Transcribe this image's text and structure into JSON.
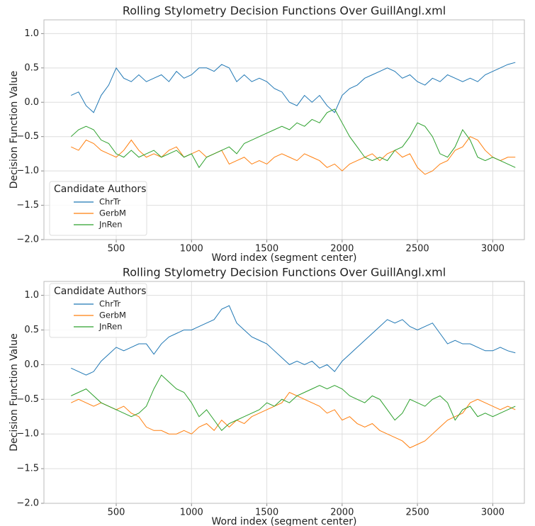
{
  "chart_data": [
    {
      "type": "line",
      "title": "Rolling Stylometry Decision Functions Over GuillAngl.xml",
      "x_label": "Word index (segment center)",
      "y_label": "Decision Function Value",
      "legend_title": "Candidate Authors",
      "legend": "lower left",
      "grid": true,
      "xlim": [
        20,
        3210
      ],
      "ylim": [
        -2,
        1.2
      ],
      "xticks": [
        500,
        1000,
        1500,
        2000,
        2500,
        3000
      ],
      "yticks": [
        {
          "value": -2,
          "label": "−2.0"
        },
        {
          "value": -1.5,
          "label": "−1.5"
        },
        {
          "value": -1,
          "label": "−1.0"
        },
        {
          "value": -0.5,
          "label": "−0.5"
        },
        {
          "value": 0,
          "label": "0.0"
        },
        {
          "value": 0.5,
          "label": "0.5"
        },
        {
          "value": 1,
          "label": "1.0"
        }
      ],
      "x": [
        200,
        250,
        300,
        350,
        400,
        450,
        500,
        550,
        600,
        650,
        700,
        750,
        800,
        850,
        900,
        950,
        1000,
        1050,
        1100,
        1150,
        1200,
        1250,
        1300,
        1350,
        1400,
        1450,
        1500,
        1550,
        1600,
        1650,
        1700,
        1750,
        1800,
        1850,
        1900,
        1950,
        2000,
        2050,
        2100,
        2150,
        2200,
        2250,
        2300,
        2350,
        2400,
        2450,
        2500,
        2550,
        2600,
        2650,
        2700,
        2750,
        2800,
        2850,
        2900,
        2950,
        3000,
        3050,
        3100,
        3150
      ],
      "series": [
        {
          "name": "ChrTr",
          "color": "#1f77b4",
          "values": [
            0.1,
            0.15,
            -0.05,
            -0.15,
            0.1,
            0.25,
            0.5,
            0.35,
            0.3,
            0.4,
            0.3,
            0.35,
            0.4,
            0.3,
            0.45,
            0.35,
            0.4,
            0.5,
            0.5,
            0.45,
            0.55,
            0.5,
            0.3,
            0.4,
            0.3,
            0.35,
            0.3,
            0.2,
            0.15,
            0,
            -0.05,
            0.1,
            0,
            0.1,
            -0.05,
            -0.15,
            0.1,
            0.2,
            0.25,
            0.35,
            0.4,
            0.45,
            0.5,
            0.45,
            0.35,
            0.4,
            0.3,
            0.25,
            0.35,
            0.3,
            0.4,
            0.35,
            0.3,
            0.35,
            0.3,
            0.4,
            0.45,
            0.5,
            0.55,
            0.58
          ]
        },
        {
          "name": "GerbM",
          "color": "#ff7f0e",
          "values": [
            -0.65,
            -0.7,
            -0.55,
            -0.6,
            -0.7,
            -0.75,
            -0.8,
            -0.7,
            -0.55,
            -0.7,
            -0.8,
            -0.75,
            -0.8,
            -0.7,
            -0.65,
            -0.8,
            -0.75,
            -0.7,
            -0.8,
            -0.75,
            -0.7,
            -0.9,
            -0.85,
            -0.8,
            -0.9,
            -0.85,
            -0.9,
            -0.8,
            -0.75,
            -0.8,
            -0.85,
            -0.75,
            -0.8,
            -0.85,
            -0.95,
            -0.9,
            -1,
            -0.9,
            -0.85,
            -0.8,
            -0.75,
            -0.85,
            -0.75,
            -0.7,
            -0.8,
            -0.75,
            -0.95,
            -1.05,
            -1,
            -0.9,
            -0.85,
            -0.7,
            -0.65,
            -0.5,
            -0.55,
            -0.7,
            -0.8,
            -0.85,
            -0.8,
            -0.8
          ]
        },
        {
          "name": "JnRen",
          "color": "#2ca02c",
          "values": [
            -0.5,
            -0.4,
            -0.35,
            -0.4,
            -0.55,
            -0.6,
            -0.75,
            -0.8,
            -0.7,
            -0.8,
            -0.75,
            -0.7,
            -0.8,
            -0.75,
            -0.7,
            -0.8,
            -0.75,
            -0.95,
            -0.8,
            -0.75,
            -0.7,
            -0.65,
            -0.75,
            -0.6,
            -0.55,
            -0.5,
            -0.45,
            -0.4,
            -0.35,
            -0.4,
            -0.3,
            -0.35,
            -0.25,
            -0.3,
            -0.15,
            -0.1,
            -0.3,
            -0.5,
            -0.65,
            -0.8,
            -0.85,
            -0.8,
            -0.85,
            -0.7,
            -0.65,
            -0.5,
            -0.3,
            -0.35,
            -0.5,
            -0.75,
            -0.8,
            -0.65,
            -0.4,
            -0.55,
            -0.8,
            -0.85,
            -0.8,
            -0.85,
            -0.9,
            -0.95
          ]
        }
      ]
    },
    {
      "type": "line",
      "title": "Rolling Stylometry Decision Functions Over GuillAngl.xml",
      "x_label": "Word index (segment center)",
      "y_label": "Decision Function Value",
      "legend_title": "Candidate Authors",
      "legend": "upper left",
      "grid": true,
      "xlim": [
        20,
        3210
      ],
      "ylim": [
        -2,
        1.2
      ],
      "xticks": [
        500,
        1000,
        1500,
        2000,
        2500,
        3000
      ],
      "yticks": [
        {
          "value": -2,
          "label": "−2.0"
        },
        {
          "value": -1.5,
          "label": "−1.5"
        },
        {
          "value": -1,
          "label": "−1.0"
        },
        {
          "value": -0.5,
          "label": "−0.5"
        },
        {
          "value": 0,
          "label": "0.0"
        },
        {
          "value": 0.5,
          "label": "0.5"
        },
        {
          "value": 1,
          "label": "1.0"
        }
      ],
      "x": [
        200,
        250,
        300,
        350,
        400,
        450,
        500,
        550,
        600,
        650,
        700,
        750,
        800,
        850,
        900,
        950,
        1000,
        1050,
        1100,
        1150,
        1200,
        1250,
        1300,
        1350,
        1400,
        1450,
        1500,
        1550,
        1600,
        1650,
        1700,
        1750,
        1800,
        1850,
        1900,
        1950,
        2000,
        2050,
        2100,
        2150,
        2200,
        2250,
        2300,
        2350,
        2400,
        2450,
        2500,
        2550,
        2600,
        2650,
        2700,
        2750,
        2800,
        2850,
        2900,
        2950,
        3000,
        3050,
        3100,
        3150
      ],
      "series": [
        {
          "name": "ChrTr",
          "color": "#1f77b4",
          "values": [
            -0.05,
            -0.1,
            -0.15,
            -0.1,
            0.05,
            0.15,
            0.25,
            0.2,
            0.25,
            0.3,
            0.3,
            0.15,
            0.3,
            0.4,
            0.45,
            0.5,
            0.5,
            0.55,
            0.6,
            0.65,
            0.8,
            0.85,
            0.6,
            0.5,
            0.4,
            0.35,
            0.3,
            0.2,
            0.1,
            0,
            0.05,
            0,
            0.05,
            -0.05,
            0,
            -0.1,
            0.05,
            0.15,
            0.25,
            0.35,
            0.45,
            0.55,
            0.65,
            0.6,
            0.65,
            0.55,
            0.5,
            0.55,
            0.6,
            0.45,
            0.3,
            0.35,
            0.3,
            0.3,
            0.25,
            0.2,
            0.2,
            0.25,
            0.2,
            0.17
          ]
        },
        {
          "name": "GerbM",
          "color": "#ff7f0e",
          "values": [
            -0.55,
            -0.5,
            -0.55,
            -0.6,
            -0.55,
            -0.6,
            -0.65,
            -0.6,
            -0.7,
            -0.75,
            -0.9,
            -0.95,
            -0.95,
            -1,
            -1,
            -0.95,
            -1,
            -0.9,
            -0.85,
            -0.95,
            -0.8,
            -0.9,
            -0.8,
            -0.85,
            -0.75,
            -0.7,
            -0.65,
            -0.6,
            -0.55,
            -0.4,
            -0.45,
            -0.5,
            -0.55,
            -0.6,
            -0.7,
            -0.65,
            -0.8,
            -0.75,
            -0.85,
            -0.9,
            -0.85,
            -0.95,
            -1,
            -1.05,
            -1.1,
            -1.2,
            -1.15,
            -1.1,
            -1,
            -0.9,
            -0.8,
            -0.75,
            -0.7,
            -0.55,
            -0.5,
            -0.55,
            -0.6,
            -0.65,
            -0.6,
            -0.65
          ]
        },
        {
          "name": "JnRen",
          "color": "#2ca02c",
          "values": [
            -0.45,
            -0.4,
            -0.35,
            -0.45,
            -0.55,
            -0.6,
            -0.65,
            -0.7,
            -0.75,
            -0.7,
            -0.6,
            -0.35,
            -0.15,
            -0.25,
            -0.35,
            -0.4,
            -0.55,
            -0.75,
            -0.65,
            -0.8,
            -0.95,
            -0.85,
            -0.8,
            -0.75,
            -0.7,
            -0.65,
            -0.55,
            -0.6,
            -0.5,
            -0.55,
            -0.45,
            -0.4,
            -0.35,
            -0.3,
            -0.35,
            -0.3,
            -0.35,
            -0.45,
            -0.5,
            -0.55,
            -0.45,
            -0.5,
            -0.65,
            -0.8,
            -0.7,
            -0.5,
            -0.55,
            -0.6,
            -0.5,
            -0.45,
            -0.55,
            -0.8,
            -0.65,
            -0.6,
            -0.75,
            -0.7,
            -0.75,
            -0.7,
            -0.65,
            -0.6
          ]
        }
      ]
    }
  ]
}
